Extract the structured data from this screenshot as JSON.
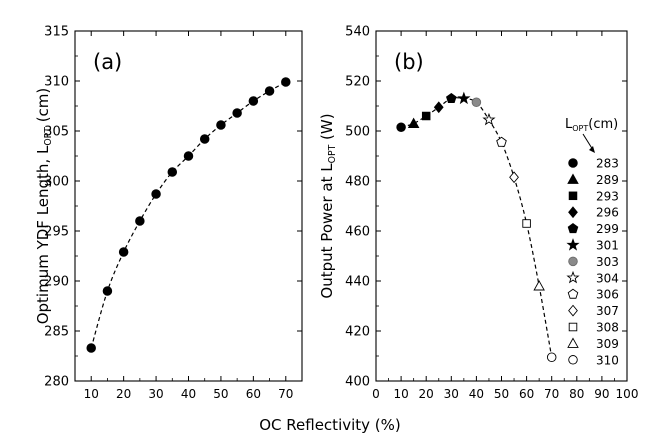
{
  "figure": {
    "xlabel": "OC Reflectivity (%)"
  },
  "chart_data": [
    {
      "type": "scatter",
      "panel_label": "(a)",
      "ylabel": "Optimum YDF Length, L",
      "ylabel_sub": "OPT",
      "ylabel_suffix": " (cm)",
      "xlim": [
        5,
        75
      ],
      "ylim": [
        280,
        315
      ],
      "xticks": [
        10,
        20,
        30,
        40,
        50,
        60,
        70
      ],
      "yticks": [
        280,
        285,
        290,
        295,
        300,
        305,
        310,
        315
      ],
      "grid": false,
      "fit_line": "dashed",
      "series": [
        {
          "marker": "filled-circle",
          "x": [
            10,
            15,
            20,
            25,
            30,
            35,
            40,
            45,
            50,
            55,
            60,
            65,
            70
          ],
          "y": [
            283.3,
            289.0,
            292.9,
            296.0,
            298.7,
            300.9,
            302.5,
            304.2,
            305.6,
            306.8,
            308.0,
            309.0,
            309.9
          ]
        }
      ]
    },
    {
      "type": "scatter",
      "panel_label": "(b)",
      "ylabel": "Output Power at L",
      "ylabel_sub": "OPT",
      "ylabel_suffix": " (W)",
      "xlim": [
        0,
        100
      ],
      "ylim": [
        400,
        540
      ],
      "xticks": [
        0,
        10,
        20,
        30,
        40,
        50,
        60,
        70,
        80,
        90,
        100
      ],
      "yticks": [
        400,
        420,
        440,
        460,
        480,
        500,
        520,
        540
      ],
      "grid": false,
      "fit_line": "dashed",
      "legend_title": "L",
      "legend_title_sub": "OPT",
      "legend_title_suffix": "(cm)",
      "legend_position": "right",
      "series": [
        {
          "name": "283",
          "marker": "filled-circle",
          "x": 10,
          "y": 501.5
        },
        {
          "name": "289",
          "marker": "filled-triangle",
          "x": 15,
          "y": 503.0
        },
        {
          "name": "293",
          "marker": "filled-square",
          "x": 20,
          "y": 506.0
        },
        {
          "name": "296",
          "marker": "filled-diamond",
          "x": 25,
          "y": 509.5
        },
        {
          "name": "299",
          "marker": "filled-pentagon",
          "x": 30,
          "y": 513.0
        },
        {
          "name": "301",
          "marker": "filled-star",
          "x": 35,
          "y": 513.0
        },
        {
          "name": "303",
          "marker": "gray-circle",
          "x": 40,
          "y": 511.5
        },
        {
          "name": "304",
          "marker": "open-star",
          "x": 45,
          "y": 504.5
        },
        {
          "name": "306",
          "marker": "open-pentagon",
          "x": 50,
          "y": 495.5
        },
        {
          "name": "307",
          "marker": "open-diamond",
          "x": 55,
          "y": 481.5
        },
        {
          "name": "308",
          "marker": "open-square",
          "x": 60,
          "y": 463.0
        },
        {
          "name": "309",
          "marker": "open-triangle",
          "x": 65,
          "y": 438.0
        },
        {
          "name": "310",
          "marker": "open-circle",
          "x": 70,
          "y": 409.5
        }
      ]
    }
  ]
}
